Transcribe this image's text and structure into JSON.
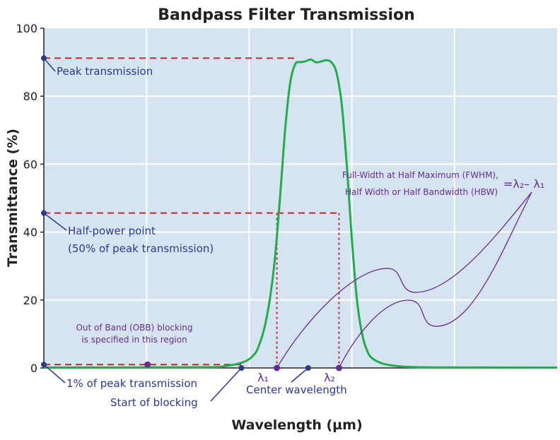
{
  "chart_data": {
    "type": "line",
    "title": "Bandpass Filter Transmission",
    "xlabel": "Wavelength (µm)",
    "ylabel": "Transmittance (%)",
    "xlim": [
      0,
      100
    ],
    "ylim": [
      0,
      100
    ],
    "yticks": [
      "0",
      "20",
      "40",
      "60",
      "80",
      "100"
    ],
    "grid": true,
    "series": [
      {
        "color": "#1fae4b",
        "x": [
          0,
          30,
          35,
          39,
          41,
          42,
          43,
          44,
          45,
          46,
          47,
          48,
          49,
          50,
          51,
          52,
          53,
          54,
          55,
          56,
          57,
          58,
          59,
          60,
          61,
          62,
          63,
          64,
          66,
          68,
          70,
          72,
          78,
          100
        ],
        "y": [
          0.1,
          0.2,
          0.5,
          1.8,
          4,
          7,
          12,
          20,
          32,
          50,
          70,
          84,
          89.5,
          90,
          90.3,
          90.8,
          90,
          90.2,
          90.6,
          90,
          87,
          78,
          60,
          38,
          20,
          10,
          5,
          2.8,
          1.3,
          0.7,
          0.4,
          0.25,
          0.15,
          0.1
        ]
      }
    ],
    "reference_levels": {
      "peak": 91.2,
      "half_power": 45.6,
      "one_percent": 1.0
    },
    "lambda1_x": 45.4,
    "lambda2_x": 57.5,
    "center_x": 51.5,
    "blocking_start_x": 38.5
  },
  "annotations": {
    "peak": "Peak transmission",
    "half_power_1": "Half-power point",
    "half_power_2": "(50% of peak transmission)",
    "one_percent": "1% of peak transmission",
    "start_blocking": "Start of blocking",
    "center": "Center wavelength",
    "obb_1": "Out of Band (OBB) blocking",
    "obb_2": "is specified in this region",
    "fwhm_1": "Full-Width at Half Maximum (FWHM),",
    "fwhm_2": "Half Width or Half Bandwidth (HBW)",
    "fwhm_formula": "=λ₂– λ₁",
    "lambda1": "λ₁",
    "lambda2": "λ₂"
  },
  "colors": {
    "plot_bg": "#d6e4f2",
    "grid": "#ffffff",
    "curve": "#1fae4b",
    "dashed": "#c1272d",
    "blue_marker": "#2b3990",
    "purple_marker": "#662d91"
  }
}
